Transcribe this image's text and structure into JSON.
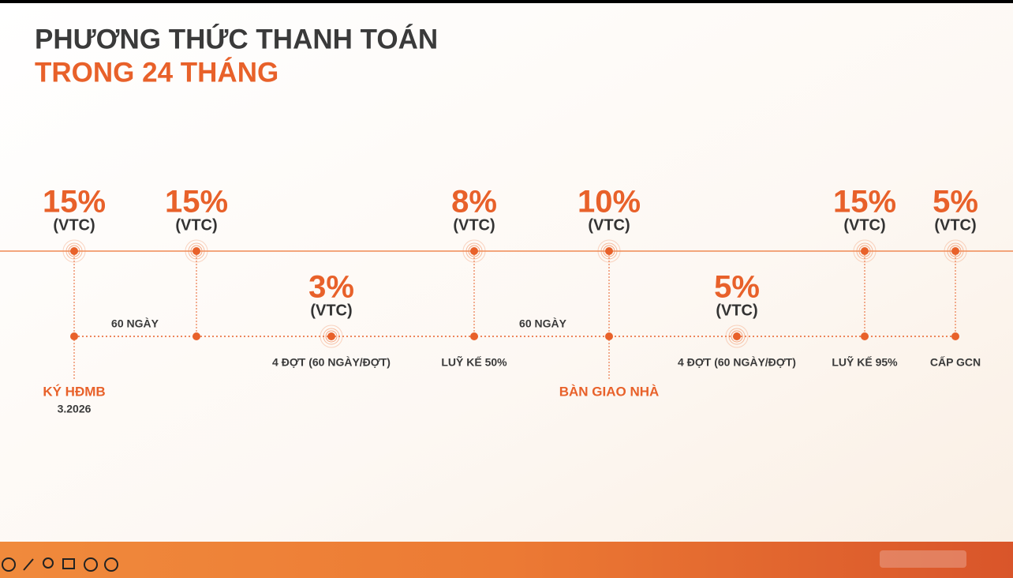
{
  "header": {
    "title": "PHƯƠNG THỨC THANH TOÁN",
    "subtitle": "TRONG 24 THÁNG"
  },
  "payments": [
    {
      "percent": "15%",
      "unit": "(VTC)"
    },
    {
      "percent": "15%",
      "unit": "(VTC)"
    },
    {
      "percent": "3%",
      "unit": "(VTC)"
    },
    {
      "percent": "8%",
      "unit": "(VTC)"
    },
    {
      "percent": "10%",
      "unit": "(VTC)"
    },
    {
      "percent": "5%",
      "unit": "(VTC)"
    },
    {
      "percent": "15%",
      "unit": "(VTC)"
    },
    {
      "percent": "5%",
      "unit": "(VTC)"
    }
  ],
  "intervals": [
    "60 NGÀY",
    "60 NGÀY"
  ],
  "step_notes": [
    "4 ĐỢT (60 NGÀY/ĐỢT)",
    "LUỸ KẾ 50%",
    "4 ĐỢT (60 NGÀY/ĐỢT)",
    "LUỸ KẾ 95%",
    "CẤP GCN"
  ],
  "events": [
    {
      "label": "KÝ HĐMB",
      "date": "3.2026"
    },
    {
      "label": "BÀN GIAO NHÀ"
    }
  ]
}
